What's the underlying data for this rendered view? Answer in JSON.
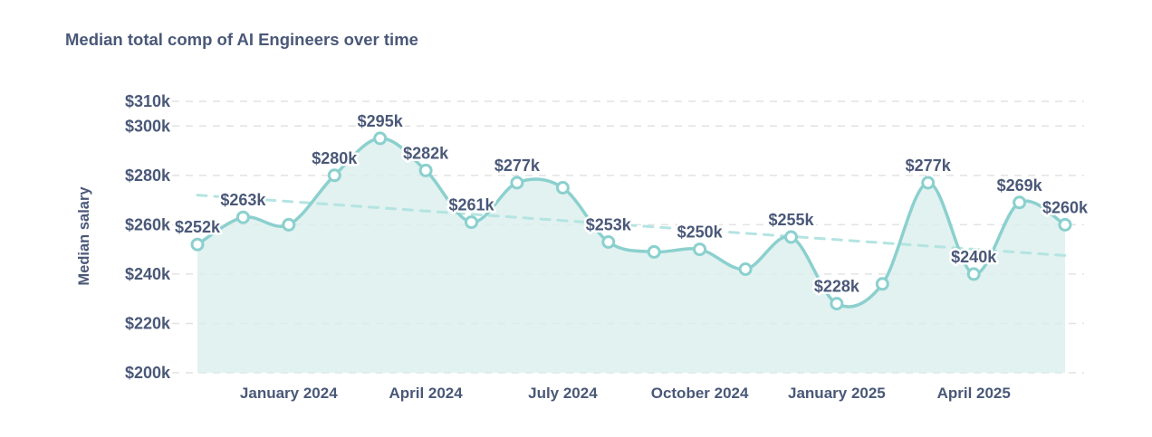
{
  "title": "Median total comp of AI Engineers over time",
  "chart_data": {
    "type": "area",
    "title": "Median total comp of AI Engineers over time",
    "xlabel": "",
    "ylabel": "Median salary",
    "x_count": 20,
    "x": [
      0,
      1,
      2,
      3,
      4,
      5,
      6,
      7,
      8,
      9,
      10,
      11,
      12,
      13,
      14,
      15,
      16,
      17,
      18,
      19
    ],
    "series": [
      {
        "name": "Median salary",
        "values": [
          252,
          263,
          260,
          280,
          295,
          282,
          261,
          277,
          275,
          253,
          249,
          250,
          242,
          255,
          228,
          236,
          277,
          240,
          269,
          260
        ]
      }
    ],
    "point_labels": [
      "$252k",
      "$263k",
      "",
      "$280k",
      "$295k",
      "$282k",
      "$261k",
      "$277k",
      "",
      "$253k",
      "",
      "$250k",
      "",
      "$255k",
      "$228k",
      "",
      "$277k",
      "$240k",
      "$269k",
      "$260k"
    ],
    "y_ticks": [
      {
        "value": 310,
        "label": "$310k"
      },
      {
        "value": 300,
        "label": "$300k"
      },
      {
        "value": 280,
        "label": "$280k"
      },
      {
        "value": 260,
        "label": "$260k"
      },
      {
        "value": 240,
        "label": "$240k"
      },
      {
        "value": 220,
        "label": "$220k"
      },
      {
        "value": 200,
        "label": "$200k"
      }
    ],
    "x_tick_labels": [
      {
        "index": 2,
        "label": "January 2024"
      },
      {
        "index": 5,
        "label": "April 2024"
      },
      {
        "index": 8,
        "label": "July 2024"
      },
      {
        "index": 11,
        "label": "October 2024"
      },
      {
        "index": 14,
        "label": "January 2025"
      },
      {
        "index": 17,
        "label": "April 2025"
      }
    ],
    "ylim": [
      200,
      310
    ],
    "grid": "horizontal-dashed",
    "legend": "none",
    "trendline": {
      "style": "dashed",
      "start_value": 272,
      "end_value": 247.5
    },
    "colors": {
      "line": "#8bd0ce",
      "fill": "#d9efec",
      "trend": "#b4e4e1",
      "grid": "#e2e2e2",
      "text": "#4a5878",
      "marker_fill": "#ffffff"
    }
  }
}
